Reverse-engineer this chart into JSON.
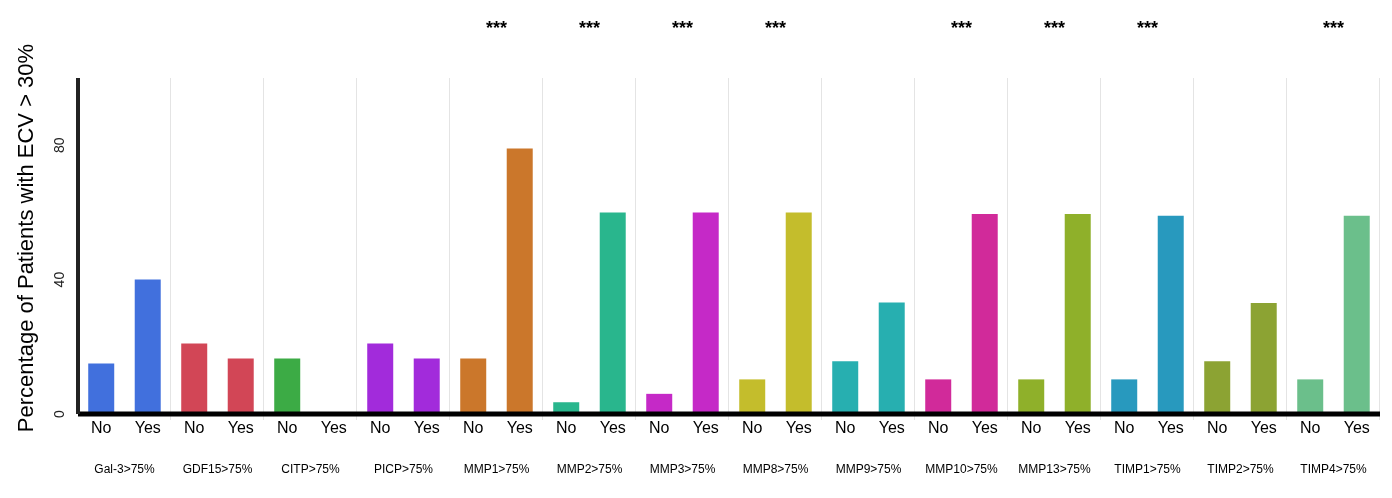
{
  "chart_data": [
    {
      "type": "bar",
      "title": "Gal-3>75%",
      "ylabel": "Percentage of Patients with ECV > 30%",
      "categories": [
        "No",
        "Yes"
      ],
      "values": [
        15,
        40
      ],
      "color": "#4170dd",
      "ylim": [
        0,
        100
      ],
      "yticks": [
        0,
        40,
        80
      ]
    },
    {
      "type": "bar",
      "title": "GDF15>75%",
      "categories": [
        "No",
        "Yes"
      ],
      "values": [
        21,
        16.5
      ],
      "color": "#d24656",
      "ylim": [
        0,
        100
      ],
      "tick_labels": "x"
    },
    {
      "type": "bar",
      "title": "CITP>75%",
      "categories": [
        "No",
        "Yes"
      ],
      "values": [
        16.5,
        0
      ],
      "color": "#3cab45",
      "ylim": [
        0,
        100
      ],
      "tick_labels": "x"
    },
    {
      "type": "bar",
      "title": "PICP>75%",
      "categories": [
        "No",
        "Yes"
      ],
      "values": [
        21,
        16.5
      ],
      "color": "#a22bdb",
      "ylim": [
        0,
        100
      ],
      "tick_labels": "x"
    },
    {
      "type": "bar",
      "title": "MMP1>75%",
      "categories": [
        "No",
        "Yes"
      ],
      "values": [
        16.5,
        79
      ],
      "color": "#cb772b",
      "ylim": [
        0,
        100
      ],
      "tick_labels": "x",
      "annotations": [
        "***"
      ]
    },
    {
      "type": "bar",
      "title": "MMP2>75%",
      "categories": [
        "No",
        "Yes"
      ],
      "values": [
        3.5,
        60
      ],
      "color": "#29b68d",
      "ylim": [
        0,
        100
      ],
      "tick_labels": "x",
      "annotations": [
        "***"
      ]
    },
    {
      "type": "bar",
      "title": "MMP3>75%",
      "categories": [
        "No",
        "Yes"
      ],
      "values": [
        6,
        60
      ],
      "color": "#c529c7",
      "ylim": [
        0,
        100
      ],
      "tick_labels": "x",
      "annotations": [
        "***"
      ]
    },
    {
      "type": "bar",
      "title": "MMP8>75%",
      "categories": [
        "No",
        "Yes"
      ],
      "values": [
        10.3,
        60
      ],
      "color": "#c4bd2c",
      "ylim": [
        0,
        100
      ],
      "tick_labels": "x",
      "annotations": [
        "***"
      ]
    },
    {
      "type": "bar",
      "title": "MMP9>75%",
      "categories": [
        "No",
        "Yes"
      ],
      "values": [
        15.7,
        33.2
      ],
      "color": "#27afb0",
      "ylim": [
        0,
        100
      ],
      "tick_labels": "x"
    },
    {
      "type": "bar",
      "title": "MMP10>75%",
      "categories": [
        "No",
        "Yes"
      ],
      "values": [
        10.3,
        59.5
      ],
      "color": "#d12a9a",
      "ylim": [
        0,
        100
      ],
      "tick_labels": "x",
      "annotations": [
        "***"
      ]
    },
    {
      "type": "bar",
      "title": "MMP13>75%",
      "categories": [
        "No",
        "Yes"
      ],
      "values": [
        10.3,
        59.5
      ],
      "color": "#8fb02a",
      "ylim": [
        0,
        100
      ],
      "tick_labels": "x",
      "annotations": [
        "***"
      ]
    },
    {
      "type": "bar",
      "title": "TIMP1>75%",
      "categories": [
        "No",
        "Yes"
      ],
      "values": [
        10.3,
        59
      ],
      "color": "#2899be",
      "ylim": [
        0,
        100
      ],
      "tick_labels": "x",
      "annotations": [
        "***"
      ]
    },
    {
      "type": "bar",
      "title": "TIMP2>75%",
      "categories": [
        "No",
        "Yes"
      ],
      "values": [
        15.7,
        33
      ],
      "color": "#8ca333",
      "ylim": [
        0,
        100
      ],
      "tick_labels": "x"
    },
    {
      "type": "bar",
      "title": "TIMP4>75%",
      "categories": [
        "No",
        "Yes"
      ],
      "values": [
        10.3,
        59
      ],
      "color": "#6bbf8b",
      "ylim": [
        0,
        100
      ],
      "tick_labels": "x",
      "annotations": [
        "***"
      ]
    }
  ]
}
